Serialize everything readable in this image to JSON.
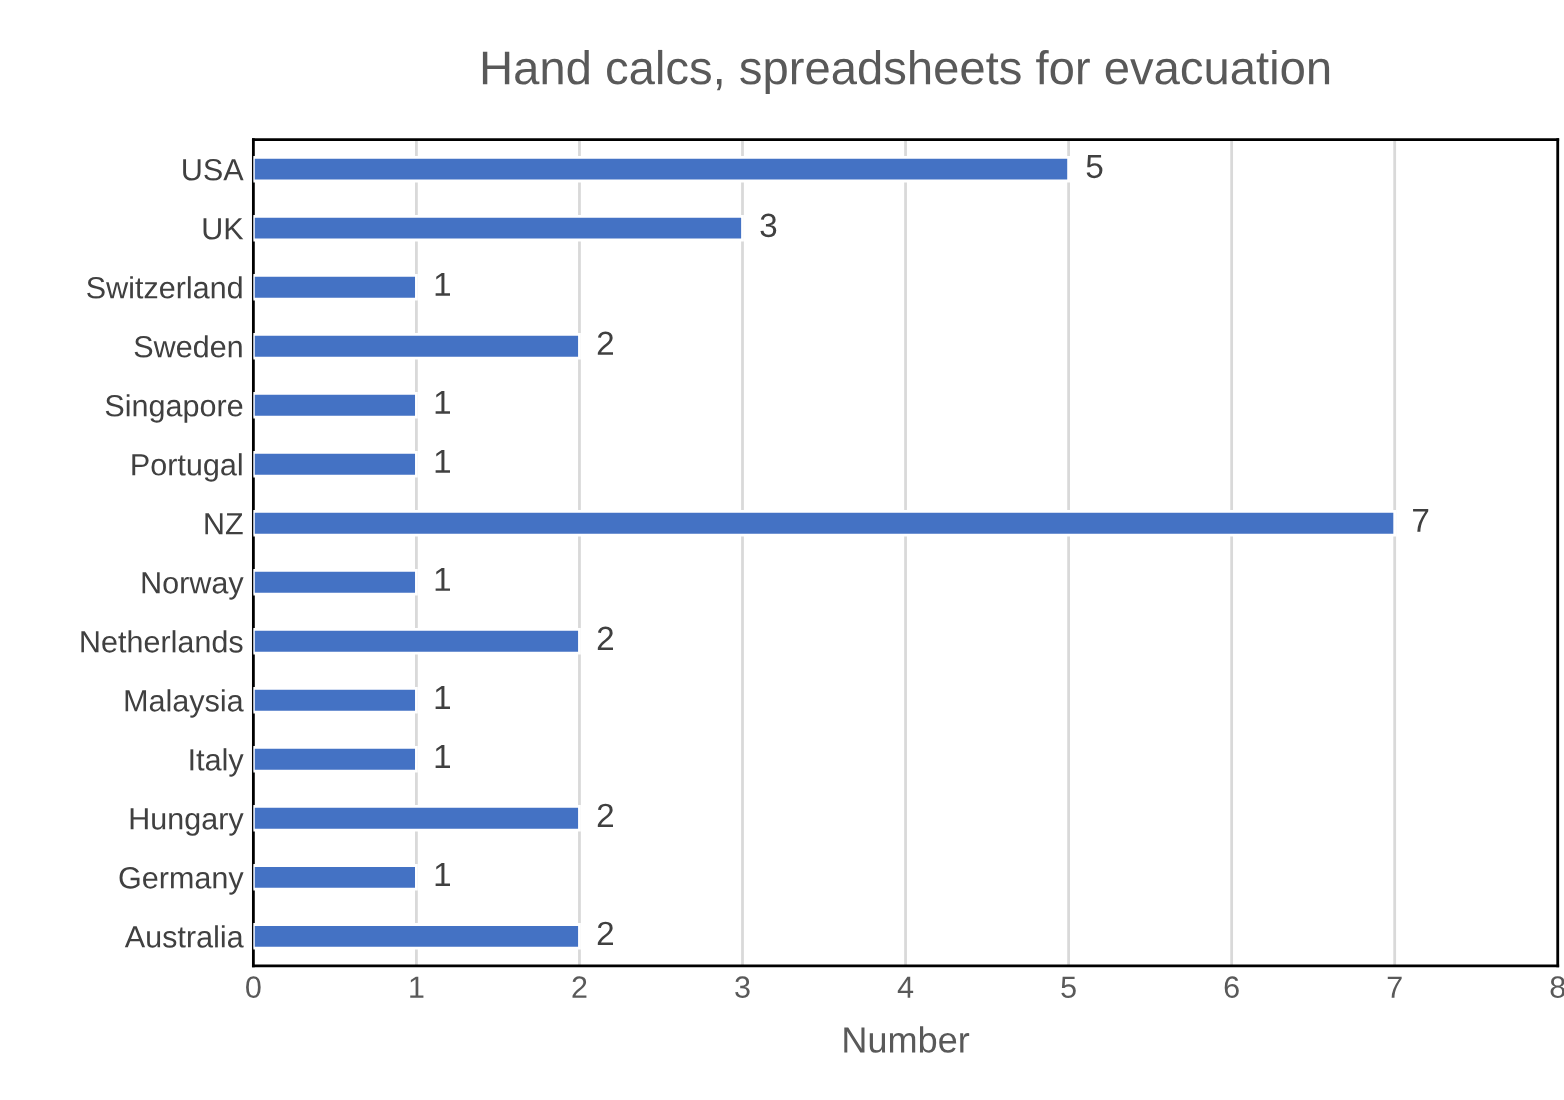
{
  "chart_data": {
    "type": "bar",
    "orientation": "horizontal",
    "title": "Hand calcs, spreadsheets for evacuation",
    "xlabel": "Number",
    "categories": [
      "USA",
      "UK",
      "Switzerland",
      "Sweden",
      "Singapore",
      "Portugal",
      "NZ",
      "Norway",
      "Netherlands",
      "Malaysia",
      "Italy",
      "Hungary",
      "Germany",
      "Australia"
    ],
    "values": [
      5,
      3,
      1,
      2,
      1,
      1,
      7,
      1,
      2,
      1,
      1,
      2,
      1,
      2
    ],
    "color": "#4472c4",
    "xlim": [
      0,
      8
    ],
    "xticks": [
      0,
      1,
      2,
      3,
      4,
      5,
      6,
      7,
      8
    ],
    "grid": "x",
    "data_labels": true,
    "legend": false
  }
}
